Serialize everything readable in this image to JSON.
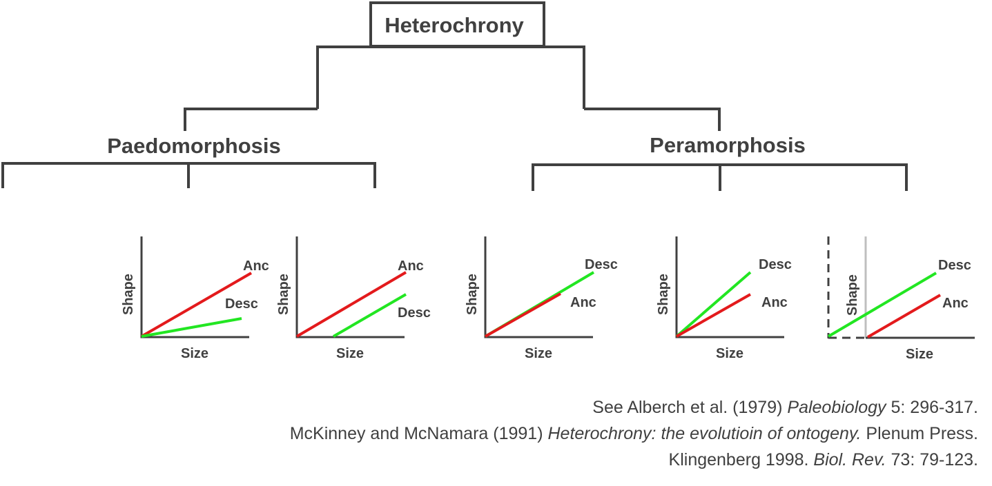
{
  "diagram": {
    "root": "Heterochrony",
    "left_branch": "Paedomorphosis",
    "right_branch": "Peramorphosis"
  },
  "axis_labels": {
    "x": "Size",
    "y": "Shape"
  },
  "panels": [
    {
      "top_label": "Anc",
      "bottom_label": "Desc"
    },
    {
      "top_label": "Anc",
      "bottom_label": "Desc"
    },
    {
      "top_label": "Desc",
      "bottom_label": "Anc"
    },
    {
      "top_label": "Desc",
      "bottom_label": "Anc"
    },
    {
      "top_label": "Desc",
      "bottom_label": "Anc"
    }
  ],
  "colors": {
    "ancestor": "#e31a1c",
    "descendant": "#22e622",
    "tree": "#404040",
    "shifted_axis": "#bfbfbf"
  },
  "references": [
    {
      "pre": "See Alberch et al. (1979) ",
      "italic": "Paleobiology",
      "post": " 5: 296-317."
    },
    {
      "pre": "McKinney and McNamara (1991) ",
      "italic": "Heterochrony: the evolutioin of ontogeny.",
      "post": " Plenum Press."
    },
    {
      "pre": "Klingenberg 1998. ",
      "italic": "Biol. Rev.",
      "post": " 73: 79-123."
    }
  ]
}
